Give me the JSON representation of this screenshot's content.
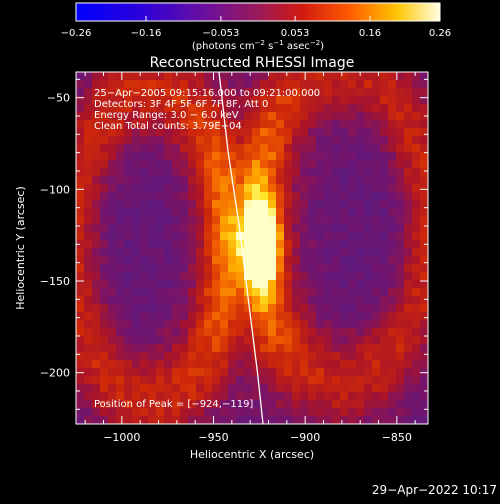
{
  "chart_data": {
    "type": "heatmap",
    "title": "Reconstructed RHESSI Image",
    "xlabel": "Heliocentric X (arcsec)",
    "ylabel": "Heliocentric Y (arcsec)",
    "xlim": [
      -1025,
      -833
    ],
    "ylim": [
      -228,
      -36
    ],
    "x_ticks": [
      -1000,
      -950,
      -900,
      -850
    ],
    "y_ticks": [
      -50,
      -100,
      -150,
      -200
    ],
    "x_tick_labels": [
      "−1000",
      "−950",
      "−900",
      "−850"
    ],
    "y_tick_labels": [
      "−50",
      "−100",
      "−150",
      "−200"
    ],
    "colorbar": {
      "min": -0.26,
      "max": 0.26,
      "ticks": [
        -0.26,
        -0.16,
        -0.053,
        0.053,
        0.16,
        0.26
      ],
      "tick_labels": [
        "−0.26",
        "−0.16",
        "−0.053",
        "0.053",
        "0.16",
        "0.26"
      ],
      "label_main": "(photons cm",
      "label_exp1": "−2",
      "label_mid": " s",
      "label_exp2": "−1",
      "label_mid2": " asec",
      "label_exp3": "−2",
      "label_end": ")"
    },
    "annotations": [
      "25−Apr−2005 09:15:16.000 to 09:21:00.000",
      "Detectors: 3F 4F 5F 6F 7F 8F, Att 0",
      "Energy Range: 3.0 − 6.0 keV",
      "Clean      Total counts: 3.79E+04"
    ],
    "peak_label": "Position of Peak = [−924,−119]",
    "peak": [
      -924,
      -119
    ],
    "limb_curve": [
      [
        -947,
        -36
      ],
      [
        -942,
        -80
      ],
      [
        -936,
        -120
      ],
      [
        -931,
        -160
      ],
      [
        -926,
        -200
      ],
      [
        -923,
        -228
      ]
    ],
    "grid": false
  },
  "footer": {
    "timestamp": "29−Apr−2022 10:17"
  }
}
